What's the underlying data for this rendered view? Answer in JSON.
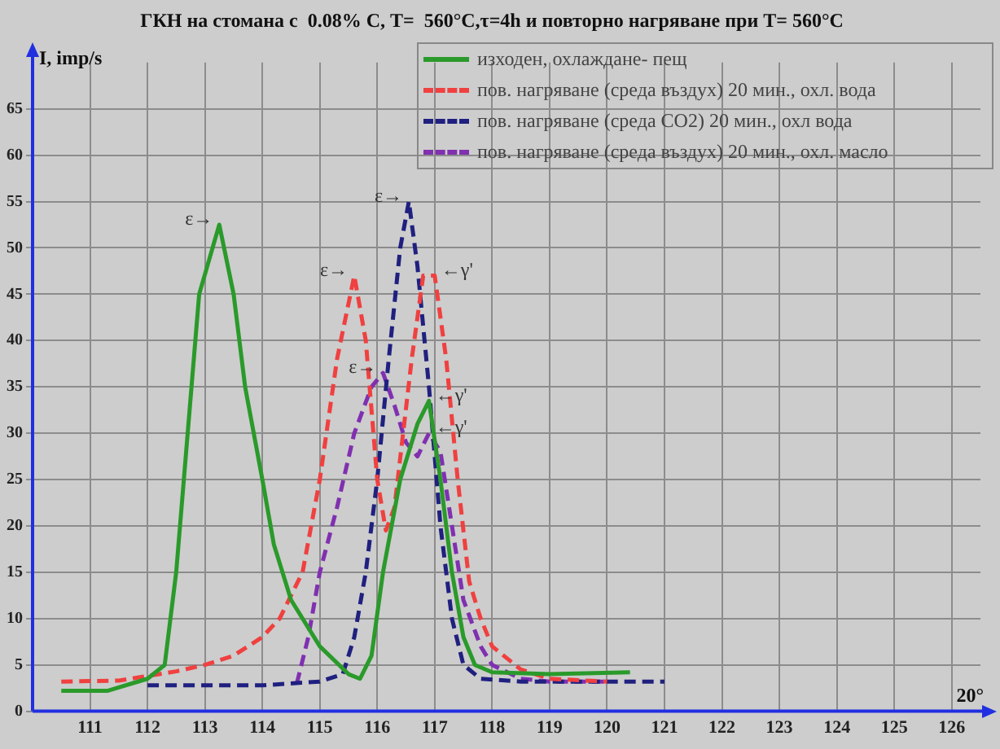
{
  "chart_data": {
    "type": "line",
    "title": "ГКН на стомана с  0.08% С, Т=  560°С,τ=4h и повторно нагряване при Т= 560°С",
    "xlabel": "20°",
    "ylabel": "I, imp/s",
    "xlim": [
      110,
      126.5
    ],
    "xticks": [
      111,
      112,
      113,
      114,
      115,
      116,
      117,
      118,
      119,
      120,
      121,
      122,
      123,
      124,
      125,
      126
    ],
    "ylim": [
      0,
      70
    ],
    "yticks": [
      0,
      5,
      10,
      15,
      20,
      25,
      30,
      35,
      40,
      45,
      50,
      55,
      60,
      65
    ],
    "grid": true,
    "legend": "top right",
    "series": [
      {
        "name": "изходен, охлаждане- пещ",
        "color": "#2a9a2a",
        "line_style": "solid",
        "x": [
          110.5,
          111.3,
          112,
          112.3,
          112.5,
          112.7,
          112.9,
          113.25,
          113.5,
          113.7,
          114,
          114.2,
          114.5,
          115,
          115.5,
          115.7,
          115.9,
          116.1,
          116.4,
          116.7,
          116.9,
          117.1,
          117.3,
          117.5,
          117.7,
          118,
          119,
          120.4
        ],
        "values": [
          2.2,
          2.2,
          3.5,
          5,
          15,
          30,
          45,
          52.5,
          45,
          35,
          25,
          18,
          12,
          7,
          4,
          3.5,
          6,
          15,
          25,
          31,
          33.5,
          25,
          15,
          8,
          5,
          4.2,
          4,
          4.2
        ]
      },
      {
        "name": "пов. нагряване  (среда въздух) 20 мин., охл. вода",
        "color": "#f04040",
        "line_style": "dashed",
        "x": [
          110.5,
          111.5,
          112,
          112.5,
          113,
          113.5,
          114,
          114.3,
          114.7,
          115,
          115.3,
          115.6,
          115.8,
          116,
          116.15,
          116.3,
          116.6,
          116.8,
          117,
          117.2,
          117.4,
          117.6,
          117.8,
          118,
          118.5,
          119,
          120
        ],
        "values": [
          3.2,
          3.3,
          3.8,
          4.3,
          5,
          6,
          8,
          10,
          15,
          25,
          38,
          47,
          40,
          25,
          19.5,
          22,
          38,
          47,
          47,
          38,
          25,
          14,
          10,
          7,
          4.5,
          3.5,
          3.2
        ]
      },
      {
        "name": "пов. нагряване (среда CO2)  20 мин., охл вода",
        "color": "#202080",
        "line_style": "dashed",
        "x": [
          112,
          113,
          114,
          115,
          115.4,
          115.6,
          115.8,
          116,
          116.2,
          116.4,
          116.55,
          116.7,
          116.9,
          117.1,
          117.3,
          117.5,
          117.8,
          118.5,
          121
        ],
        "values": [
          2.8,
          2.8,
          2.8,
          3.2,
          4,
          8,
          15,
          25,
          38,
          50,
          55,
          48,
          35,
          20,
          10,
          5,
          3.5,
          3.2,
          3.2
        ]
      },
      {
        "name": "пов. нагряване  (среда въздух) 20 мин., охл. масло",
        "color": "#8030b0",
        "line_style": "dashed",
        "x": [
          114.6,
          114.8,
          115,
          115.3,
          115.6,
          115.9,
          116.1,
          116.3,
          116.5,
          116.7,
          116.9,
          117.1,
          117.3,
          117.5,
          117.8,
          118,
          118.5,
          119,
          120
        ],
        "values": [
          3,
          8,
          15,
          22,
          30,
          35,
          36.5,
          33,
          29,
          27.5,
          30,
          28,
          20,
          12,
          7,
          5,
          3.5,
          3.2,
          3.2
        ]
      }
    ],
    "annotations": [
      {
        "text": "ε→",
        "x": 113.25,
        "y": 52.5
      },
      {
        "text": "ε→",
        "x": 115.6,
        "y": 47
      },
      {
        "text": "ε→",
        "x": 116.55,
        "y": 55
      },
      {
        "text": "ε→",
        "x": 116.1,
        "y": 36.5
      },
      {
        "text": "←γ'",
        "x": 117,
        "y": 47
      },
      {
        "text": "←γ'",
        "x": 116.9,
        "y": 33.5
      },
      {
        "text": "←γ'",
        "x": 116.9,
        "y": 30
      }
    ]
  }
}
